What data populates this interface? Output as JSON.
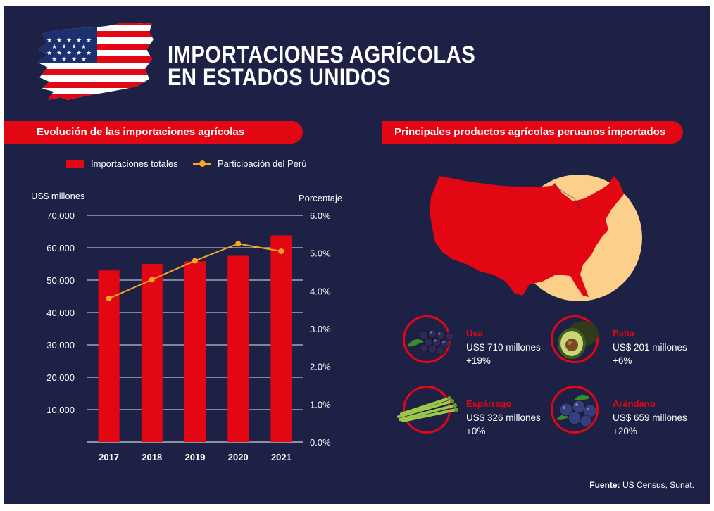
{
  "header": {
    "title_line1": "IMPORTACIONES AGRÍCOLAS",
    "title_line2": "EN ESTADOS UNIDOS",
    "flag_icon": "usa-flag-icon"
  },
  "left_panel": {
    "heading": "Evolución de las importaciones agrícolas",
    "legend_bar": "Importaciones totales",
    "legend_line": "Participación del Perú",
    "left_axis_unit": "US$ millones",
    "right_axis_unit": "Porcentaje"
  },
  "chart_data": {
    "type": "bar",
    "categories": [
      "2017",
      "2018",
      "2019",
      "2020",
      "2021"
    ],
    "series": [
      {
        "name": "Importaciones totales",
        "type": "bar",
        "axis": "left",
        "values": [
          53000,
          55000,
          55800,
          57500,
          63800
        ],
        "color": "#e30613"
      },
      {
        "name": "Participación del Perú",
        "type": "line",
        "axis": "right",
        "values": [
          3.8,
          4.3,
          4.8,
          5.25,
          5.05
        ],
        "color": "#f5a623"
      }
    ],
    "left_axis": {
      "label": "US$ millones",
      "ylim": [
        0,
        70000
      ],
      "ticks": [
        "-",
        "10,000",
        "20,000",
        "30,000",
        "40,000",
        "50,000",
        "60,000",
        "70,000"
      ],
      "tick_values": [
        0,
        10000,
        20000,
        30000,
        40000,
        50000,
        60000,
        70000
      ]
    },
    "right_axis": {
      "label": "Porcentaje",
      "ylim": [
        0,
        6
      ],
      "ticks": [
        "0.0%",
        "1.0%",
        "2.0%",
        "3.0%",
        "4.0%",
        "5.0%",
        "6.0%"
      ],
      "tick_values": [
        0,
        1,
        2,
        3,
        4,
        5,
        6
      ]
    },
    "grid": true,
    "legend_position": "top"
  },
  "right_panel": {
    "heading": "Principales productos agrícolas peruanos importados",
    "map_icon": "usa-map-icon",
    "products": [
      {
        "name": "Uva",
        "value": "US$ 710 millones",
        "change": "+19%",
        "icon": "grapes-icon"
      },
      {
        "name": "Palta",
        "value": "US$ 201 millones",
        "change": "+6%",
        "icon": "avocado-icon"
      },
      {
        "name": "Espárrago",
        "value": "US$ 326 millones",
        "change": "+0%",
        "icon": "asparagus-icon"
      },
      {
        "name": "Arándano",
        "value": "US$ 659 millones",
        "change": "+20%",
        "icon": "blueberry-icon"
      }
    ]
  },
  "footer": {
    "source_label": "Fuente:",
    "source_text": "US Census, Sunat."
  },
  "colors": {
    "background": "#1c2145",
    "accent": "#e30613",
    "line": "#f5a623",
    "map_sun": "#fcd08a"
  }
}
